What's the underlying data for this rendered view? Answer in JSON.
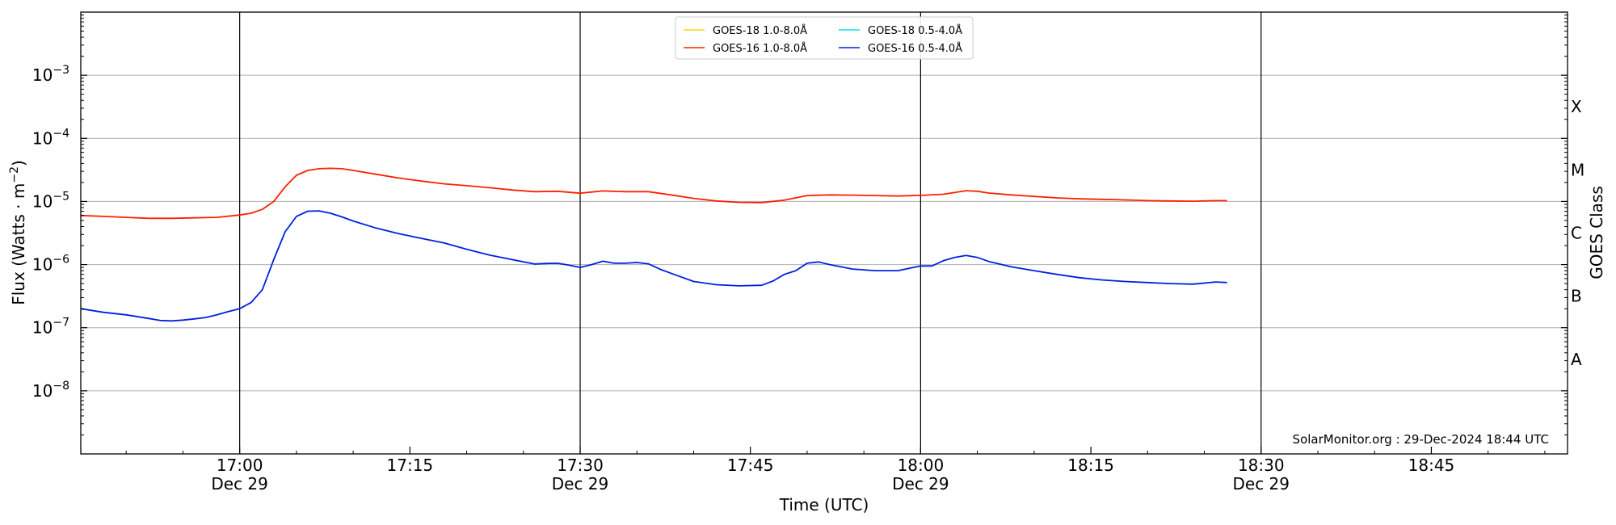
{
  "chart_data": {
    "type": "line",
    "title": "",
    "xlabel": "Time (UTC)",
    "ylabel": "Flux (Watts · m",
    "ylabel_sup": "−2",
    "ylabel_close": ")",
    "y2label": "GOES Class",
    "yscale": "log",
    "ylim": [
      1e-09,
      0.01
    ],
    "xlim": [
      "16:46",
      "18:57"
    ],
    "grid": "horizontal",
    "legend_position": "top-center",
    "watermark": "SolarMonitor.org : 29-Dec-2024 18:44 UTC",
    "x_ticks": [
      {
        "time": "17:00",
        "label": "17:00",
        "date": "Dec 29"
      },
      {
        "time": "17:15",
        "label": "17:15",
        "date": ""
      },
      {
        "time": "17:30",
        "label": "17:30",
        "date": "Dec 29"
      },
      {
        "time": "17:45",
        "label": "17:45",
        "date": ""
      },
      {
        "time": "18:00",
        "label": "18:00",
        "date": "Dec 29"
      },
      {
        "time": "18:15",
        "label": "18:15",
        "date": ""
      },
      {
        "time": "18:30",
        "label": "18:30",
        "date": "Dec 29"
      },
      {
        "time": "18:45",
        "label": "18:45",
        "date": ""
      }
    ],
    "vlines": [
      "17:00",
      "17:30",
      "18:00",
      "18:30"
    ],
    "y_ticks": [
      {
        "value": 1e-08,
        "mant": "10",
        "exp": "−8"
      },
      {
        "value": 1e-07,
        "mant": "10",
        "exp": "−7"
      },
      {
        "value": 1e-06,
        "mant": "10",
        "exp": "−6"
      },
      {
        "value": 1e-05,
        "mant": "10",
        "exp": "−5"
      },
      {
        "value": 0.0001,
        "mant": "10",
        "exp": "−4"
      },
      {
        "value": 0.001,
        "mant": "10",
        "exp": "−3"
      }
    ],
    "goes_classes": [
      {
        "label": "A",
        "value": 3.16e-08
      },
      {
        "label": "B",
        "value": 3.16e-07
      },
      {
        "label": "C",
        "value": 3.16e-06
      },
      {
        "label": "M",
        "value": 3.16e-05
      },
      {
        "label": "X",
        "value": 0.000316
      }
    ],
    "series": [
      {
        "name": "GOES-18 1.0-8.0Å",
        "color": "#ffd700",
        "x": [],
        "values": []
      },
      {
        "name": "GOES-16 1.0-8.0Å",
        "color": "#ff2000",
        "x": [
          "16:46",
          "16:48",
          "16:50",
          "16:52",
          "16:54",
          "16:56",
          "16:58",
          "17:00",
          "17:01",
          "17:02",
          "17:03",
          "17:04",
          "17:05",
          "17:06",
          "17:07",
          "17:08",
          "17:09",
          "17:10",
          "17:12",
          "17:14",
          "17:16",
          "17:18",
          "17:20",
          "17:22",
          "17:24",
          "17:26",
          "17:28",
          "17:30",
          "17:32",
          "17:34",
          "17:36",
          "17:38",
          "17:40",
          "17:42",
          "17:44",
          "17:46",
          "17:48",
          "17:50",
          "17:52",
          "17:54",
          "17:56",
          "17:58",
          "18:00",
          "18:02",
          "18:04",
          "18:05",
          "18:06",
          "18:08",
          "18:10",
          "18:12",
          "18:14",
          "18:16",
          "18:18",
          "18:20",
          "18:22",
          "18:24",
          "18:26",
          "18:27"
        ],
        "values": [
          6e-06,
          5.8e-06,
          5.6e-06,
          5.4e-06,
          5.4e-06,
          5.5e-06,
          5.6e-06,
          6.1e-06,
          6.5e-06,
          7.5e-06,
          1e-05,
          1.7e-05,
          2.6e-05,
          3.1e-05,
          3.3e-05,
          3.35e-05,
          3.3e-05,
          3.1e-05,
          2.7e-05,
          2.35e-05,
          2.1e-05,
          1.9e-05,
          1.78e-05,
          1.65e-05,
          1.52e-05,
          1.43e-05,
          1.45e-05,
          1.35e-05,
          1.47e-05,
          1.43e-05,
          1.43e-05,
          1.27e-05,
          1.12e-05,
          1.02e-05,
          9.7e-06,
          9.6e-06,
          1.05e-05,
          1.24e-05,
          1.27e-05,
          1.26e-05,
          1.24e-05,
          1.22e-05,
          1.25e-05,
          1.3e-05,
          1.48e-05,
          1.45e-05,
          1.36e-05,
          1.27e-05,
          1.2e-05,
          1.14e-05,
          1.1e-05,
          1.08e-05,
          1.06e-05,
          1.03e-05,
          1.02e-05,
          1.01e-05,
          1.03e-05,
          1.03e-05
        ]
      },
      {
        "name": "GOES-18 0.5-4.0Å",
        "color": "#00e5ee",
        "x": [],
        "values": []
      },
      {
        "name": "GOES-16 0.5-4.0Å",
        "color": "#0020e0",
        "x": [
          "16:46",
          "16:48",
          "16:50",
          "16:52",
          "16:53",
          "16:54",
          "16:55",
          "16:56",
          "16:57",
          "16:58",
          "16:59",
          "17:00",
          "17:01",
          "17:02",
          "17:03",
          "17:04",
          "17:05",
          "17:06",
          "17:07",
          "17:08",
          "17:09",
          "17:10",
          "17:12",
          "17:14",
          "17:16",
          "17:18",
          "17:20",
          "17:22",
          "17:24",
          "17:26",
          "17:27",
          "17:28",
          "17:29",
          "17:30",
          "17:31",
          "17:32",
          "17:33",
          "17:34",
          "17:35",
          "17:36",
          "17:37",
          "17:38",
          "17:40",
          "17:42",
          "17:44",
          "17:46",
          "17:47",
          "17:48",
          "17:49",
          "17:50",
          "17:51",
          "17:52",
          "17:54",
          "17:56",
          "17:58",
          "18:00",
          "18:01",
          "18:02",
          "18:03",
          "18:04",
          "18:05",
          "18:06",
          "18:08",
          "18:10",
          "18:12",
          "18:14",
          "18:16",
          "18:18",
          "18:20",
          "18:22",
          "18:24",
          "18:26",
          "18:27"
        ],
        "values": [
          2e-07,
          1.75e-07,
          1.6e-07,
          1.4e-07,
          1.3e-07,
          1.28e-07,
          1.32e-07,
          1.38e-07,
          1.45e-07,
          1.6e-07,
          1.8e-07,
          2e-07,
          2.5e-07,
          4e-07,
          1.2e-06,
          3.3e-06,
          5.8e-06,
          7e-06,
          7.1e-06,
          6.5e-06,
          5.7e-06,
          4.9e-06,
          3.8e-06,
          3.1e-06,
          2.6e-06,
          2.2e-06,
          1.75e-06,
          1.42e-06,
          1.2e-06,
          1.02e-06,
          1.04e-06,
          1.05e-06,
          9.8e-07,
          9e-07,
          1e-06,
          1.13e-06,
          1.05e-06,
          1.05e-06,
          1.08e-06,
          1.03e-06,
          8.5e-07,
          7.3e-07,
          5.4e-07,
          4.8e-07,
          4.6e-07,
          4.7e-07,
          5.5e-07,
          7e-07,
          8e-07,
          1.05e-06,
          1.1e-06,
          1e-06,
          8.5e-07,
          8e-07,
          8e-07,
          9.5e-07,
          9.5e-07,
          1.15e-06,
          1.3e-06,
          1.4e-06,
          1.3e-06,
          1.12e-06,
          9.2e-07,
          8e-07,
          7e-07,
          6.2e-07,
          5.7e-07,
          5.4e-07,
          5.2e-07,
          5e-07,
          4.9e-07,
          5.3e-07,
          5.2e-07
        ]
      }
    ]
  }
}
